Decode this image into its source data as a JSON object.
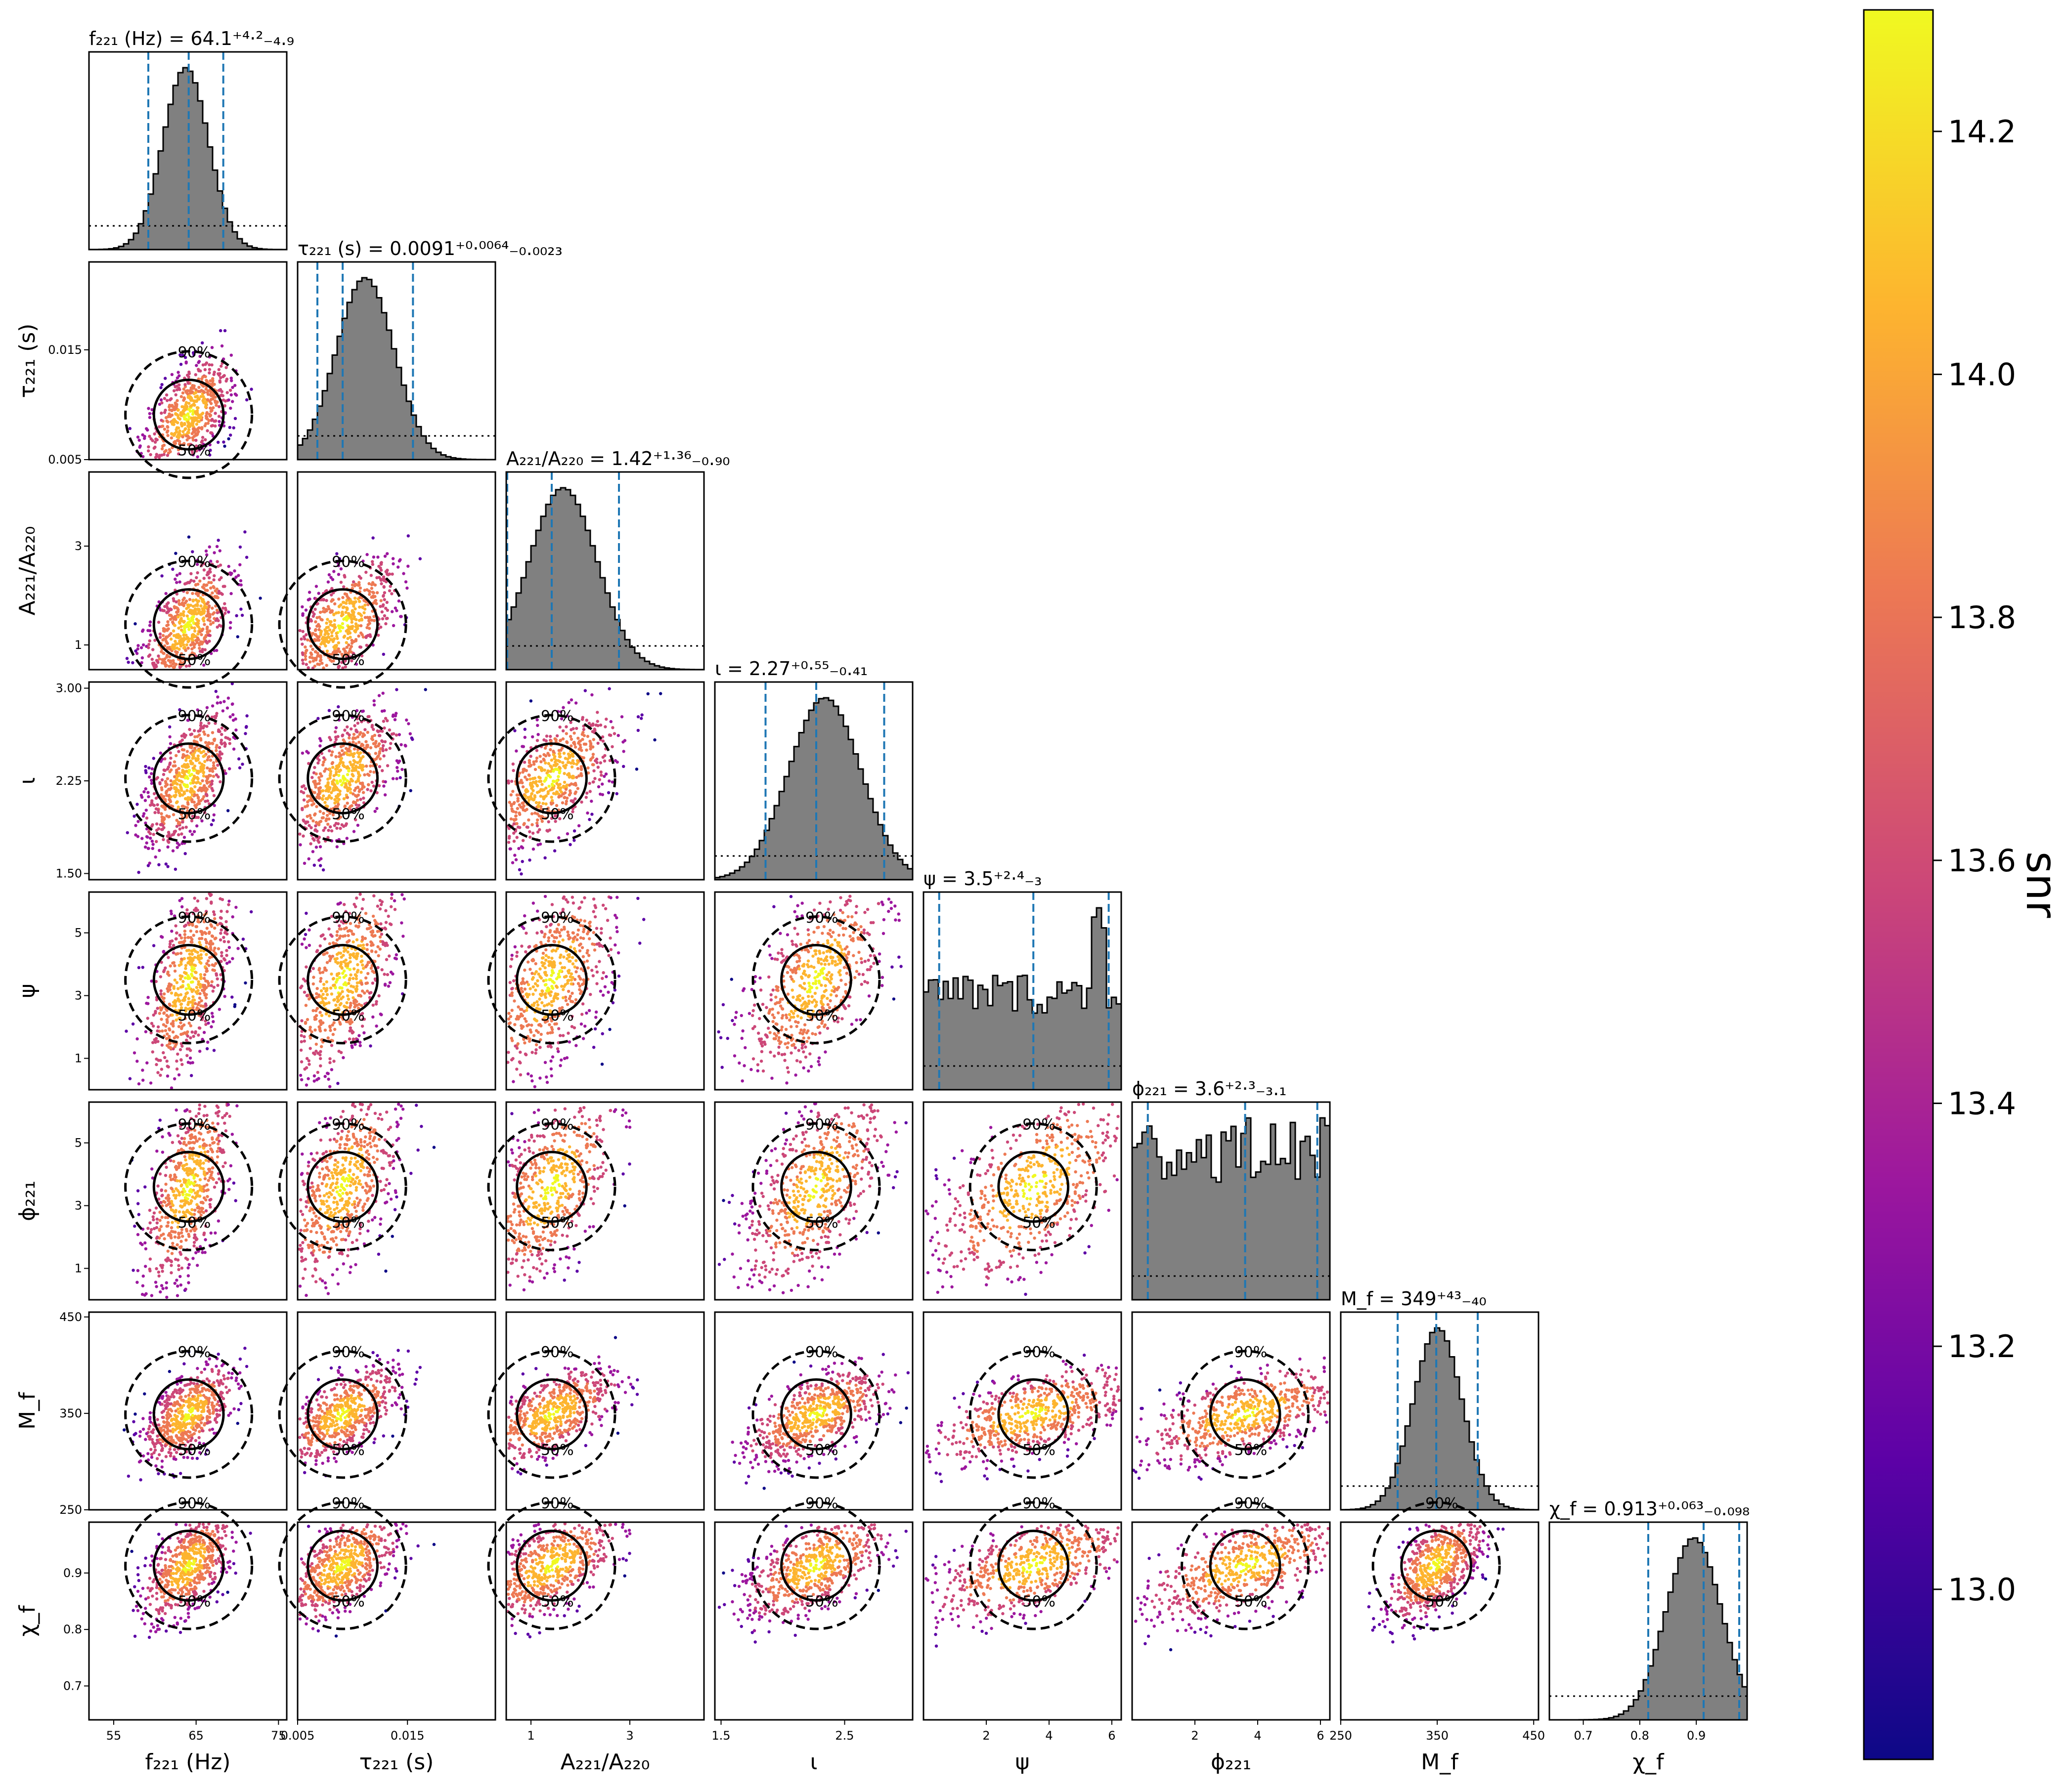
{
  "chart_data": {
    "type": "corner",
    "colorbar": {
      "label": "snr",
      "ticks": [
        "13.0",
        "13.2",
        "13.4",
        "13.6",
        "13.8",
        "14.0",
        "14.2"
      ],
      "range": [
        12.86,
        14.3
      ],
      "colormap": [
        "#0d0887",
        "#5c01a6",
        "#9c179e",
        "#cc4778",
        "#ed7953",
        "#fdb42f",
        "#f0f921"
      ]
    },
    "params": [
      {
        "key": "f221",
        "axis_label": "f₂₂₁ (Hz)",
        "range": [
          52,
          76
        ],
        "ticks": [
          55,
          65,
          75
        ],
        "tick_labels": [
          "55",
          "65",
          "75"
        ],
        "title": "f₂₂₁ (Hz) = 64.1⁺⁴·²₋₄.₉",
        "quantiles": [
          59.2,
          64.1,
          68.3
        ]
      },
      {
        "key": "tau221",
        "axis_label": "τ₂₂₁ (s)",
        "range": [
          0.005,
          0.023
        ],
        "ticks": [
          0.005,
          0.015
        ],
        "tick_labels": [
          "0.005",
          "0.015"
        ],
        "title": "τ₂₂₁ (s) = 0.0091⁺⁰·⁰⁰⁶⁴₋₀.₀₀₂₃",
        "quantiles": [
          0.0068,
          0.0091,
          0.0155
        ]
      },
      {
        "key": "A221",
        "axis_label": "A₂₂₁/A₂₂₀",
        "range": [
          0.5,
          4.5
        ],
        "ticks": [
          1,
          3
        ],
        "tick_labels": [
          "1",
          "3"
        ],
        "title": "A₂₂₁/A₂₂₀ = 1.42⁺¹·³⁶₋₀.₉₀",
        "quantiles": [
          0.52,
          1.42,
          2.78
        ]
      },
      {
        "key": "iota",
        "axis_label": "ι",
        "range": [
          1.45,
          3.05
        ],
        "ticks": [
          1.5,
          2.25,
          3.0
        ],
        "tick_labels": [
          "1.50",
          "2.25",
          "3.00"
        ],
        "title": "ι = 2.27⁺⁰·⁵⁵₋₀.₄₁",
        "quantiles": [
          1.86,
          2.27,
          2.82
        ]
      },
      {
        "key": "psi",
        "axis_label": "ψ",
        "range": [
          0,
          6.3
        ],
        "ticks": [
          1,
          3,
          5
        ],
        "tick_labels": [
          "1",
          "3",
          "5"
        ],
        "title": "ψ = 3.5⁺²·⁴₋₃",
        "quantiles": [
          0.5,
          3.5,
          5.9
        ]
      },
      {
        "key": "phi221",
        "axis_label": "ϕ₂₂₁",
        "range": [
          0,
          6.3
        ],
        "ticks": [
          1,
          3,
          5
        ],
        "tick_labels": [
          "1",
          "3",
          "5"
        ],
        "title": "ϕ₂₂₁ = 3.6⁺²·³₋₃.₁",
        "quantiles": [
          0.5,
          3.6,
          5.9
        ]
      },
      {
        "key": "Mf",
        "axis_label": "M_f",
        "range": [
          250,
          455
        ],
        "ticks": [
          250,
          350,
          450
        ],
        "tick_labels": [
          "250",
          "350",
          "450"
        ],
        "title": "M_f = 349⁺⁴³₋₄₀",
        "quantiles": [
          309,
          349,
          392
        ]
      },
      {
        "key": "chif",
        "axis_label": "χ_f",
        "range": [
          0.64,
          0.99
        ],
        "ticks": [
          0.7,
          0.8,
          0.9
        ],
        "tick_labels": [
          "0.7",
          "0.8",
          "0.9"
        ],
        "title": "χ_f = 0.913⁺⁰·⁰⁶³₋₀.₀₉₈",
        "quantiles": [
          0.815,
          0.913,
          0.976
        ]
      }
    ],
    "bottom_tick_labels": [
      [
        "55",
        "65",
        "75"
      ],
      [
        "0.005",
        "0.015"
      ],
      [
        "1",
        "3"
      ],
      [
        "1.5",
        "2.5"
      ],
      [
        "2",
        "4",
        "6"
      ],
      [
        "2",
        "4",
        "6"
      ],
      [
        "250",
        "350",
        "450"
      ],
      [
        "0.7",
        "0.8",
        "0.9"
      ]
    ],
    "contour_levels": [
      "50%",
      "90%"
    ]
  }
}
